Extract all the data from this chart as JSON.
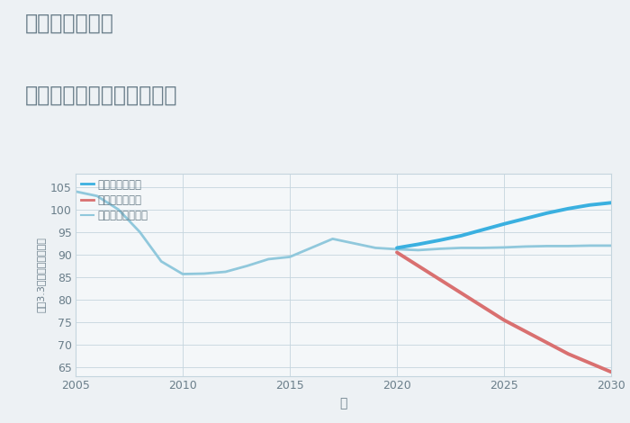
{
  "title_line1": "三重県益生駅の",
  "title_line2": "中古マンションの価格推移",
  "xlabel": "年",
  "ylabel": "坪（3.3㎡）単価（万円）",
  "bg_color": "#edf1f4",
  "plot_bg_color": "#f4f7f9",
  "xlim": [
    2005,
    2030
  ],
  "ylim": [
    63,
    108
  ],
  "yticks": [
    65,
    70,
    75,
    80,
    85,
    90,
    95,
    100,
    105
  ],
  "xticks": [
    2005,
    2010,
    2015,
    2020,
    2025,
    2030
  ],
  "good_scenario": {
    "label": "グッドシナリオ",
    "color": "#3ab0e0",
    "linewidth": 2.8,
    "x": [
      2020,
      2021,
      2022,
      2023,
      2024,
      2025,
      2026,
      2027,
      2028,
      2029,
      2030
    ],
    "y": [
      91.5,
      92.3,
      93.2,
      94.2,
      95.5,
      96.8,
      98.0,
      99.2,
      100.2,
      101.0,
      101.5
    ]
  },
  "bad_scenario": {
    "label": "バッドシナリオ",
    "color": "#d97070",
    "linewidth": 2.8,
    "x": [
      2020,
      2021,
      2022,
      2023,
      2024,
      2025,
      2026,
      2027,
      2028,
      2029,
      2030
    ],
    "y": [
      90.5,
      87.5,
      84.5,
      81.5,
      78.5,
      75.5,
      73.0,
      70.5,
      68.0,
      66.0,
      64.0
    ]
  },
  "normal_scenario": {
    "label": "ノーマルシナリオ",
    "color": "#90c8dc",
    "linewidth": 2.0,
    "x": [
      2005,
      2006,
      2007,
      2008,
      2009,
      2010,
      2011,
      2012,
      2013,
      2014,
      2015,
      2016,
      2017,
      2018,
      2019,
      2020,
      2021,
      2022,
      2023,
      2024,
      2025,
      2026,
      2027,
      2028,
      2029,
      2030
    ],
    "y": [
      104.0,
      103.0,
      100.0,
      95.0,
      88.5,
      85.7,
      85.8,
      86.2,
      87.5,
      89.0,
      89.5,
      91.5,
      93.5,
      92.5,
      91.5,
      91.2,
      91.0,
      91.3,
      91.5,
      91.5,
      91.6,
      91.8,
      91.9,
      91.9,
      92.0,
      92.0
    ]
  },
  "title_color": "#6a7e8a",
  "tick_color": "#6a7e8a",
  "grid_color": "#c5d5de",
  "spine_color": "#c5d5de"
}
